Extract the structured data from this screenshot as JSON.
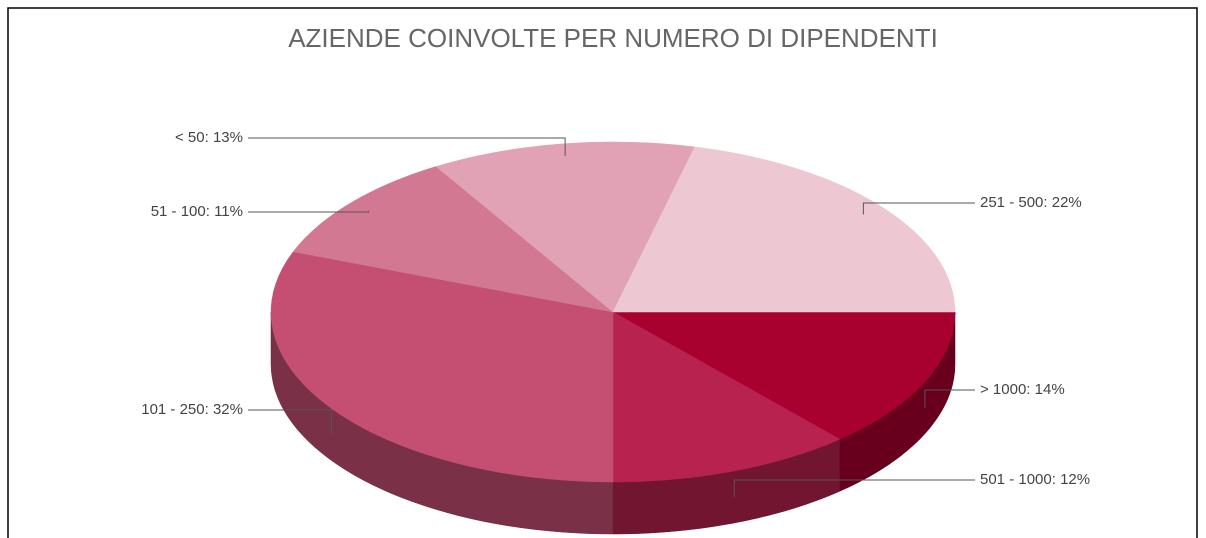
{
  "chart_data": {
    "type": "pie3d",
    "title": "AZIENDE COINVOLTE PER NUMERO DI DIPENDENTI",
    "categories": [
      "> 1000",
      "501 - 1000",
      "101 - 250",
      "51 - 100",
      "< 50",
      "251 - 500"
    ],
    "values": [
      14,
      12,
      32,
      11,
      13,
      22
    ],
    "value_labels": [
      "14%",
      "12%",
      "32%",
      "11%",
      "13%",
      "22%"
    ],
    "label_separator": ": ",
    "colors": [
      "#a8002f",
      "#b7224f",
      "#c44f72",
      "#d37893",
      "#e0a2b4",
      "#edc8d3"
    ]
  }
}
